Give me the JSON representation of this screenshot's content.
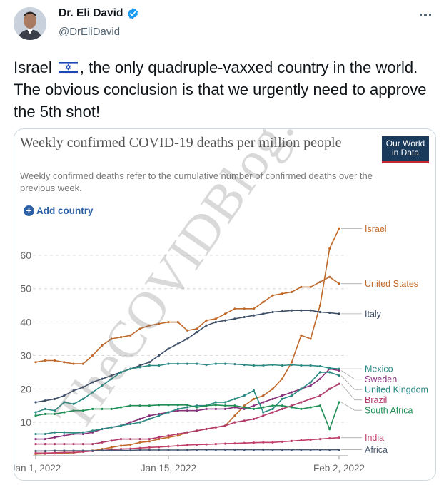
{
  "tweet": {
    "author_name": "Dr. Eli David",
    "author_handle": "@DrEliDavid",
    "text_before_flag": "Israel",
    "text_after_flag": ", the only quadruple-vaxxed country in the world. The obvious conclusion is that we urgently need to approve the 5th shot!",
    "flag_icon": "israel-flag-icon",
    "verified_icon": "verified-badge-icon"
  },
  "chart_card": {
    "title": "Weekly confirmed COVID-19 deaths per million people",
    "subtitle": "Weekly confirmed deaths refer to the cumulative number of confirmed deaths over the previous week.",
    "logo_line1": "Our World",
    "logo_line2": "in Data",
    "add_country_label": "Add country",
    "watermark": "TheCOVIDBlog.com"
  },
  "chart_data": {
    "type": "line",
    "title": "Weekly confirmed COVID-19 deaths per million people",
    "ylim": [
      0,
      70
    ],
    "yticks": [
      10,
      20,
      30,
      40,
      50,
      60
    ],
    "x": [
      0,
      1,
      2,
      3,
      4,
      5,
      6,
      7,
      8,
      9,
      10,
      11,
      12,
      13,
      14,
      15,
      16,
      17,
      18,
      19,
      20,
      21,
      22,
      23,
      24,
      25,
      26,
      27,
      28,
      29,
      30,
      31,
      32
    ],
    "xtick_labels": [
      {
        "label": "Jan 1, 2022",
        "x": 0
      },
      {
        "label": "Jan 15, 2022",
        "x": 14
      },
      {
        "label": "Feb 2, 2022",
        "x": 32
      }
    ],
    "grid": true,
    "series": [
      {
        "name": "Israel",
        "color": "#c0692a",
        "values": [
          0.5,
          0.6,
          0.7,
          0.8,
          0.9,
          1.2,
          1.5,
          2,
          2.5,
          3,
          3.3,
          4,
          4.3,
          5,
          5.5,
          6,
          7,
          7.5,
          8,
          8.5,
          9,
          12,
          15,
          17,
          18,
          20,
          23,
          28,
          36,
          35,
          45,
          62,
          68
        ]
      },
      {
        "name": "United States",
        "color": "#c0692a",
        "values": [
          28,
          28.5,
          28.5,
          28,
          27.5,
          27.5,
          30,
          33,
          35,
          35.5,
          36,
          38,
          39,
          39.5,
          40,
          40,
          37.5,
          38,
          40.5,
          41,
          42.5,
          44,
          44,
          44,
          46,
          48,
          48.5,
          49,
          50.5,
          50.5,
          52,
          53.5,
          51.5
        ]
      },
      {
        "name": "Italy",
        "color": "#3d4e67",
        "values": [
          16,
          16.5,
          17,
          18,
          19.5,
          20.5,
          22,
          23,
          24,
          25,
          26,
          27,
          28,
          30,
          32,
          33.5,
          35,
          37,
          39,
          40,
          40.5,
          41,
          41.5,
          42,
          42.5,
          43,
          43.2,
          43.5,
          43.5,
          43.5,
          43,
          42.8,
          42.5
        ]
      },
      {
        "name": "Sweden",
        "color": "#87307a",
        "values": [
          5,
          5,
          5.5,
          6,
          6.5,
          6.5,
          7,
          8,
          8.5,
          9,
          10,
          11,
          12,
          12.5,
          13,
          13.5,
          13.5,
          13.5,
          14,
          14,
          14,
          14.5,
          14,
          15,
          16,
          17,
          18,
          19,
          20,
          21,
          23,
          26,
          25.5
        ]
      },
      {
        "name": "Mexico",
        "color": "#2a8a82",
        "values": [
          13,
          14,
          13.5,
          16,
          15.5,
          17,
          19,
          21,
          23,
          25,
          26,
          26.5,
          27,
          27,
          27.5,
          27.5,
          27.5,
          27.5,
          27.2,
          27.5,
          27.5,
          27.4,
          27.2,
          27,
          27,
          27.2,
          27,
          27.2,
          27,
          27,
          26.8,
          26.2,
          26
        ]
      },
      {
        "name": "United Kingdom",
        "color": "#2a8a82",
        "values": [
          6.5,
          6.5,
          7,
          7,
          6.8,
          7,
          7.5,
          8,
          8.5,
          9,
          9.5,
          10,
          11,
          12,
          13,
          14,
          14.5,
          15,
          15,
          16,
          16,
          17,
          18,
          19.5,
          13,
          14,
          17,
          18,
          20,
          22,
          25,
          25,
          24
        ]
      },
      {
        "name": "Brazil",
        "color": "#b03a6a",
        "values": [
          3.5,
          3.5,
          3.5,
          3.5,
          3.5,
          3.5,
          3.5,
          4,
          4.5,
          5,
          5,
          5,
          5,
          5.5,
          6,
          6.5,
          7,
          7.5,
          8,
          8.5,
          9,
          10,
          10.5,
          11,
          12,
          13,
          14,
          15,
          16,
          17,
          18,
          20,
          21.5
        ]
      },
      {
        "name": "South Africa",
        "color": "#1f8e55",
        "values": [
          12,
          12.5,
          12.5,
          13,
          13.5,
          13.5,
          14,
          14,
          14,
          14.5,
          15,
          15,
          15,
          15.2,
          15.2,
          15.2,
          15.2,
          14.5,
          15,
          15.2,
          15,
          15,
          14.5,
          14,
          14.5,
          15,
          15,
          14.5,
          14,
          14.5,
          15,
          8,
          16
        ]
      },
      {
        "name": "India",
        "color": "#c0406a",
        "values": [
          0.8,
          0.8,
          0.9,
          1,
          1,
          1.2,
          1.4,
          1.6,
          1.8,
          2,
          2.1,
          2.3,
          2.5,
          2.6,
          2.8,
          3,
          3.2,
          3.3,
          3.4,
          3.5,
          3.6,
          3.7,
          3.8,
          3.9,
          4,
          4,
          4.2,
          4.4,
          4.6,
          4.8,
          5,
          5.2,
          5.4
        ]
      },
      {
        "name": "Africa",
        "color": "#4a5a74",
        "values": [
          1.4,
          1.4,
          1.5,
          1.5,
          1.5,
          1.5,
          1.5,
          1.6,
          1.6,
          1.6,
          1.6,
          1.7,
          1.7,
          1.7,
          1.7,
          1.7,
          1.7,
          1.8,
          1.8,
          1.8,
          1.8,
          1.8,
          1.8,
          1.8,
          1.8,
          1.8,
          1.8,
          1.8,
          1.8,
          1.8,
          1.8,
          1.8,
          1.8
        ]
      }
    ]
  }
}
